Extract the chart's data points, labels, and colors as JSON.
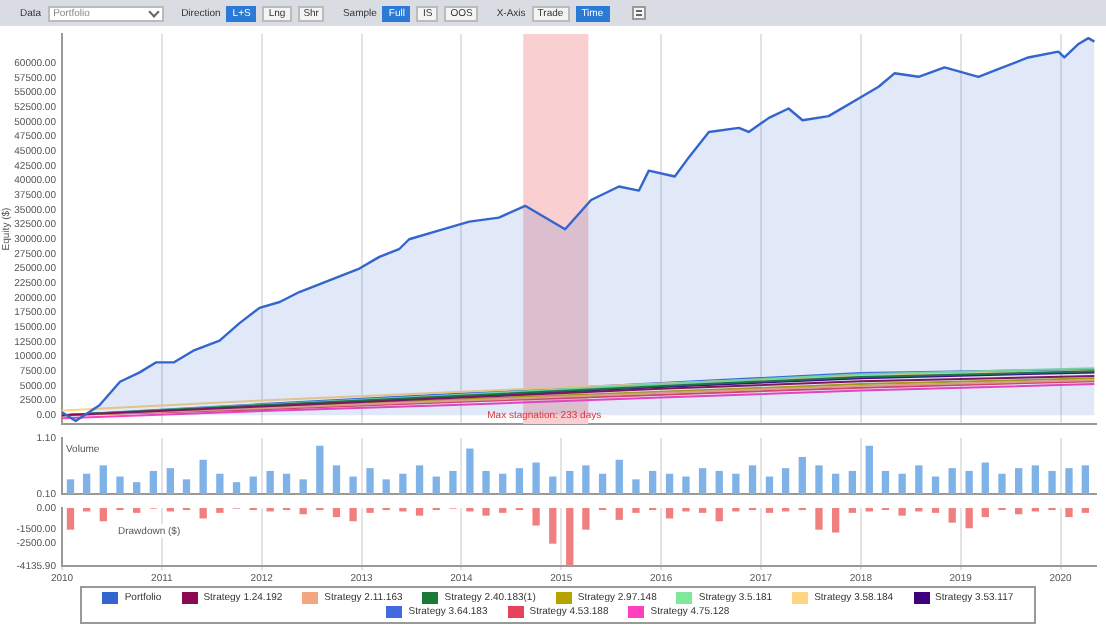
{
  "chart_data": [
    {
      "type": "other",
      "annotations": [
        "Data",
        "Portfolio",
        "Direction",
        "L+S",
        "Lng",
        "Shr",
        "Sample",
        "Full",
        "IS",
        "OOS",
        "X-Axis",
        "Trade",
        "Time"
      ]
    },
    {
      "type": "line",
      "ylabel": "Equity ($)",
      "xlim": [
        "2010-01-01",
        "2020-05-10"
      ],
      "xticks": [
        "2010",
        "2011",
        "2012",
        "2013",
        "2014",
        "2015",
        "2016",
        "2017",
        "2018",
        "2019",
        "2020"
      ],
      "ylim": [
        -1500,
        65000
      ],
      "yticks": [
        {
          "value": 0,
          "label": "0.00"
        },
        {
          "value": 2500,
          "label": "2500.00"
        },
        {
          "value": 5000,
          "label": "5000.00"
        },
        {
          "value": 7500,
          "label": "7500.00"
        },
        {
          "value": 10000,
          "label": "10000.00"
        },
        {
          "value": 12500,
          "label": "12500.00"
        },
        {
          "value": 15000,
          "label": "15000.00"
        },
        {
          "value": 17500,
          "label": "17500.00"
        },
        {
          "value": 20000,
          "label": "20000.00"
        },
        {
          "value": 22500,
          "label": "22500.00"
        },
        {
          "value": 25000,
          "label": "25000.00"
        },
        {
          "value": 27500,
          "label": "27500.00"
        },
        {
          "value": 30000,
          "label": "30000.00"
        },
        {
          "value": 32500,
          "label": "32500.00"
        },
        {
          "value": 35000,
          "label": "35000.00"
        },
        {
          "value": 37500,
          "label": "37500.00"
        },
        {
          "value": 40000,
          "label": "40000.00"
        },
        {
          "value": 42500,
          "label": "42500.00"
        },
        {
          "value": 45000,
          "label": "45000.00"
        },
        {
          "value": 47500,
          "label": "47500.00"
        },
        {
          "value": 50000,
          "label": "50000.00"
        },
        {
          "value": 52500,
          "label": "52500.00"
        },
        {
          "value": 55000,
          "label": "55000.00"
        },
        {
          "value": 57500,
          "label": "57500.00"
        },
        {
          "value": 60000,
          "label": "60000.00"
        }
      ],
      "grid": "x",
      "tick_labels": "y",
      "legend": "bottom",
      "bands": [
        {
          "axis": "x",
          "from": "2014-08-15",
          "to": "2015-04-10",
          "label": "Max stagnation: 233 days",
          "color": "#f9cfd1"
        }
      ],
      "series": [
        {
          "name": "Portfolio",
          "type": "area",
          "color": "#3366cc",
          "x": [
            "2010-01-01",
            "2010-02-20",
            "2010-05-18",
            "2010-08-01",
            "2010-10-12",
            "2010-12-10",
            "2011-02-13",
            "2011-04-26",
            "2011-07-31",
            "2011-10-12",
            "2011-12-24",
            "2012-03-07",
            "2012-05-18",
            "2012-09-05",
            "2012-12-24",
            "2013-03-07",
            "2013-05-18",
            "2013-06-24",
            "2013-10-12",
            "2014-01-30",
            "2014-05-18",
            "2014-08-22",
            "2015-01-15",
            "2015-04-20",
            "2015-07-31",
            "2015-10-12",
            "2015-11-17",
            "2016-02-20",
            "2016-04-12",
            "2016-06-24",
            "2016-10-12",
            "2016-11-17",
            "2017-01-30",
            "2017-04-12",
            "2017-06-02",
            "2017-09-05",
            "2017-12-24",
            "2018-03-07",
            "2018-05-04",
            "2018-07-31",
            "2018-11-03",
            "2019-03-07",
            "2019-05-18",
            "2019-09-05",
            "2019-12-24",
            "2020-01-15",
            "2020-03-07",
            "2020-04-12",
            "2020-05-04"
          ],
          "values": [
            500,
            -1000,
            1700,
            5700,
            7300,
            9000,
            9000,
            11000,
            12700,
            15700,
            18300,
            19300,
            21000,
            23000,
            25000,
            27000,
            28300,
            30000,
            31500,
            33000,
            33700,
            35700,
            31700,
            36700,
            39000,
            38300,
            41700,
            40700,
            44000,
            48300,
            49000,
            48300,
            50700,
            52300,
            50300,
            51000,
            54000,
            56000,
            58300,
            57700,
            59300,
            57700,
            59000,
            61000,
            62000,
            61000,
            63300,
            64300,
            63700
          ]
        },
        {
          "name": "Strategy 1.24.192",
          "type": "line",
          "color": "#8b0a50",
          "x": [
            "2010",
            "2012",
            "2014",
            "2016",
            "2018",
            "2020-05-04"
          ],
          "values": [
            0,
            1500,
            3000,
            4500,
            5800,
            6700
          ]
        },
        {
          "name": "Strategy 2.11.163",
          "type": "line",
          "color": "#f4a582",
          "x": [
            "2010",
            "2012",
            "2014",
            "2016",
            "2018",
            "2020-05-04"
          ],
          "values": [
            0,
            1200,
            2500,
            3800,
            5000,
            6000
          ]
        },
        {
          "name": "Strategy 2.40.183(1)",
          "type": "line",
          "color": "#1b7837",
          "x": [
            "2010",
            "2012",
            "2014",
            "2016",
            "2018",
            "2020-05-04"
          ],
          "values": [
            0,
            1700,
            3300,
            5000,
            6500,
            7500
          ]
        },
        {
          "name": "Strategy 2.97.148",
          "type": "line",
          "color": "#b5a300",
          "x": [
            "2010",
            "2012",
            "2014",
            "2016",
            "2018",
            "2020-05-04"
          ],
          "values": [
            0,
            1300,
            2700,
            4000,
            5300,
            6300
          ]
        },
        {
          "name": "Strategy 3.5.181",
          "type": "line",
          "color": "#7fe89a",
          "x": [
            "2010",
            "2012",
            "2014",
            "2016",
            "2018",
            "2020-05-04"
          ],
          "values": [
            0,
            1800,
            3500,
            5300,
            7000,
            8000
          ]
        },
        {
          "name": "Strategy 3.58.184",
          "type": "line",
          "color": "#ffd580",
          "x": [
            "2010",
            "2012",
            "2014",
            "2016",
            "2018",
            "2020-05-04"
          ],
          "values": [
            800,
            2500,
            4000,
            5400,
            6700,
            7600
          ]
        },
        {
          "name": "Strategy 3.53.117",
          "type": "line",
          "color": "#3f007d",
          "x": [
            "2010",
            "2012",
            "2014",
            "2016",
            "2018",
            "2020-05-04"
          ],
          "values": [
            0,
            1600,
            3200,
            4800,
            6300,
            7300
          ]
        },
        {
          "name": "Strategy 3.64.183",
          "type": "line",
          "color": "#4169e1",
          "x": [
            "2010",
            "2012",
            "2014",
            "2016",
            "2018",
            "2020-05-04"
          ],
          "values": [
            0,
            1900,
            3700,
            5500,
            7200,
            7800
          ]
        },
        {
          "name": "Strategy 4.53.188",
          "type": "line",
          "color": "#e8415a",
          "x": [
            "2010",
            "2012",
            "2014",
            "2016",
            "2018",
            "2020-05-04"
          ],
          "values": [
            0,
            1000,
            2300,
            3500,
            4700,
            5800
          ]
        },
        {
          "name": "Strategy 4.75.128",
          "type": "line",
          "color": "#ff3fbf",
          "x": [
            "2010",
            "2012",
            "2014",
            "2016",
            "2018",
            "2020-05-04"
          ],
          "values": [
            -500,
            700,
            1800,
            3000,
            4200,
            5300
          ]
        }
      ]
    },
    {
      "type": "bar",
      "ylabel": "Volume",
      "xlim": [
        "2010-01-01",
        "2020-05-10"
      ],
      "xticks": [
        "2010",
        "2011",
        "2012",
        "2013",
        "2014",
        "2015",
        "2016",
        "2017",
        "2018",
        "2019",
        "2020"
      ],
      "ylim": [
        0.1,
        1.1
      ],
      "yticks": [
        {
          "value": 0.1,
          "label": "0.10"
        },
        {
          "value": 1.1,
          "label": "1.10"
        }
      ],
      "grid": "x",
      "tick_labels": "y",
      "color": "#7fb3e8",
      "x": [
        "2010-02",
        "2010-04",
        "2010-06",
        "2010-08",
        "2010-10",
        "2010-12",
        "2011-02",
        "2011-04",
        "2011-06",
        "2011-08",
        "2011-10",
        "2011-12",
        "2012-02",
        "2012-04",
        "2012-06",
        "2012-08",
        "2012-10",
        "2012-12",
        "2013-02",
        "2013-04",
        "2013-06",
        "2013-08",
        "2013-10",
        "2013-12",
        "2014-02",
        "2014-04",
        "2014-06",
        "2014-08",
        "2014-10",
        "2014-12",
        "2015-02",
        "2015-04",
        "2015-06",
        "2015-08",
        "2015-10",
        "2015-12",
        "2016-02",
        "2016-04",
        "2016-06",
        "2016-08",
        "2016-10",
        "2016-12",
        "2017-02",
        "2017-04",
        "2017-06",
        "2017-08",
        "2017-10",
        "2017-12",
        "2018-02",
        "2018-04",
        "2018-06",
        "2018-08",
        "2018-10",
        "2018-12",
        "2019-02",
        "2019-04",
        "2019-06",
        "2019-08",
        "2019-10",
        "2019-12",
        "2020-02",
        "2020-04"
      ],
      "values": [
        0.35,
        0.45,
        0.6,
        0.4,
        0.3,
        0.5,
        0.55,
        0.35,
        0.7,
        0.45,
        0.3,
        0.4,
        0.5,
        0.45,
        0.35,
        0.95,
        0.6,
        0.4,
        0.55,
        0.35,
        0.45,
        0.6,
        0.4,
        0.5,
        0.9,
        0.5,
        0.45,
        0.55,
        0.65,
        0.4,
        0.5,
        0.6,
        0.45,
        0.7,
        0.35,
        0.5,
        0.45,
        0.4,
        0.55,
        0.5,
        0.45,
        0.6,
        0.4,
        0.55,
        0.75,
        0.6,
        0.45,
        0.5,
        0.95,
        0.5,
        0.45,
        0.6,
        0.4,
        0.55,
        0.5,
        0.65,
        0.45,
        0.55,
        0.6,
        0.5,
        0.55,
        0.6
      ]
    },
    {
      "type": "bar",
      "ylabel": "Drawdown ($)",
      "xlim": [
        "2010-01-01",
        "2020-05-10"
      ],
      "xticks": [
        "2010",
        "2011",
        "2012",
        "2013",
        "2014",
        "2015",
        "2016",
        "2017",
        "2018",
        "2019",
        "2020"
      ],
      "ylim": [
        -4135.9,
        0
      ],
      "yticks": [
        {
          "value": 0,
          "label": "0.00"
        },
        {
          "value": -1500,
          "label": "-1500.00"
        },
        {
          "value": -2500,
          "label": "-2500.00"
        },
        {
          "value": -4135.9,
          "label": "-4135.90"
        }
      ],
      "grid": "x",
      "color": "#f08080",
      "x": [
        "2010-02",
        "2010-04",
        "2010-06",
        "2010-08",
        "2010-10",
        "2010-12",
        "2011-02",
        "2011-04",
        "2011-06",
        "2011-08",
        "2011-10",
        "2011-12",
        "2012-02",
        "2012-04",
        "2012-06",
        "2012-08",
        "2012-10",
        "2012-12",
        "2013-02",
        "2013-04",
        "2013-06",
        "2013-08",
        "2013-10",
        "2013-12",
        "2014-02",
        "2014-04",
        "2014-06",
        "2014-08",
        "2014-10",
        "2014-12",
        "2015-02",
        "2015-04",
        "2015-06",
        "2015-08",
        "2015-10",
        "2015-12",
        "2016-02",
        "2016-04",
        "2016-06",
        "2016-08",
        "2016-10",
        "2016-12",
        "2017-02",
        "2017-04",
        "2017-06",
        "2017-08",
        "2017-10",
        "2017-12",
        "2018-02",
        "2018-04",
        "2018-06",
        "2018-08",
        "2018-10",
        "2018-12",
        "2019-02",
        "2019-04",
        "2019-06",
        "2019-08",
        "2019-10",
        "2019-12",
        "2020-02",
        "2020-04"
      ],
      "values": [
        -1500,
        -200,
        -900,
        -100,
        -300,
        0,
        -200,
        -100,
        -700,
        -300,
        0,
        -100,
        -200,
        -100,
        -400,
        -100,
        -600,
        -900,
        -300,
        -100,
        -200,
        -500,
        -100,
        0,
        -200,
        -500,
        -300,
        -100,
        -1200,
        -2500,
        -4135.9,
        -1500,
        -100,
        -800,
        -300,
        -100,
        -700,
        -200,
        -300,
        -900,
        -200,
        -100,
        -300,
        -200,
        -100,
        -1500,
        -1700,
        -300,
        -200,
        -100,
        -500,
        -200,
        -300,
        -1000,
        -1400,
        -600,
        -100,
        -400,
        -200,
        -100,
        -600,
        -300
      ]
    }
  ]
}
